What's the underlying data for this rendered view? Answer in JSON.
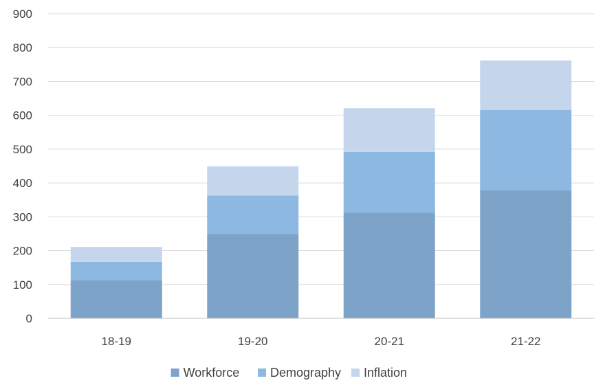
{
  "chart_data": {
    "type": "bar",
    "stacked": true,
    "title": "",
    "xlabel": "",
    "ylabel": "",
    "categories": [
      "18-19",
      "19-20",
      "20-21",
      "21-22"
    ],
    "series": [
      {
        "name": "Workforce",
        "values": [
          113,
          249,
          312,
          378
        ],
        "color": "#7ea3c9"
      },
      {
        "name": "Demography",
        "values": [
          54,
          114,
          180,
          238
        ],
        "color": "#8db8e2"
      },
      {
        "name": "Inflation",
        "values": [
          44,
          86,
          129,
          146
        ],
        "color": "#c5d6ec"
      }
    ],
    "ylim": [
      0,
      900
    ],
    "yticks": [
      "0",
      "100",
      "200",
      "300",
      "400",
      "500",
      "600",
      "700",
      "800",
      "900"
    ],
    "grid": true,
    "legend_position": "bottom"
  }
}
